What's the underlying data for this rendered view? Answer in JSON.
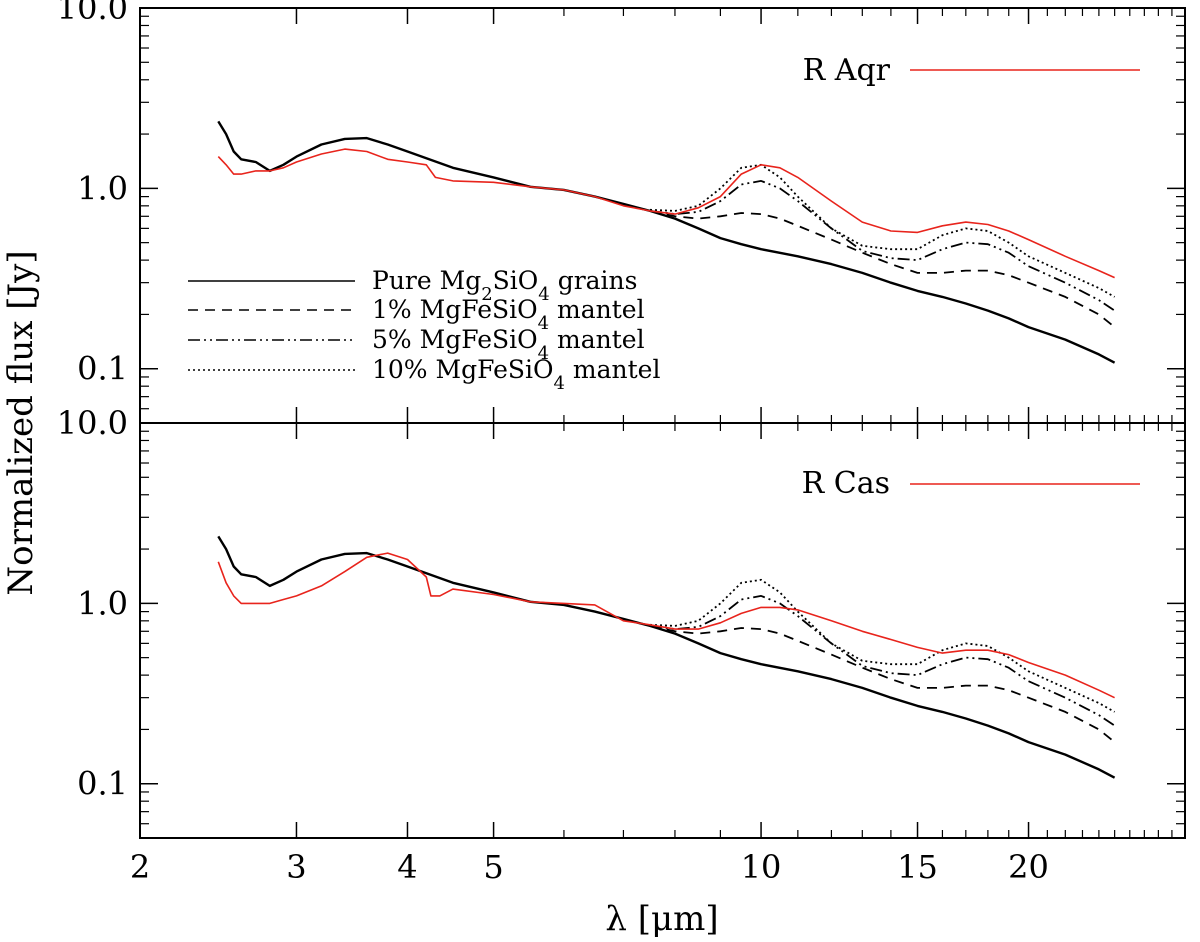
{
  "chart_data": {
    "type": "line",
    "scale": {
      "x": "log",
      "y": "log"
    },
    "xlabel": "λ [μm]",
    "ylabel": "Normalized flux [Jy]",
    "xlim": [
      2,
      30
    ],
    "ylim": [
      0.05,
      10
    ],
    "x_ticks": [
      2,
      3,
      4,
      5,
      10,
      15,
      20
    ],
    "x_tick_labels": [
      "2",
      "3",
      "4",
      "5",
      "10",
      "15",
      "20"
    ],
    "y_ticks": [
      0.1,
      1,
      10
    ],
    "y_tick_labels": [
      "0.1",
      "1.0",
      "10.0"
    ],
    "legend": {
      "placement": "lower-left of top panel",
      "entries": [
        {
          "style": "solid",
          "prefix": "Pure Mg",
          "sub1": "2",
          "mid": "SiO",
          "sub2": "4",
          "suffix": " grains"
        },
        {
          "style": "dashed",
          "prefix": "1% MgFeSiO",
          "sub1": "",
          "mid": "",
          "sub2": "4",
          "suffix": " mantel"
        },
        {
          "style": "dashdotdot",
          "prefix": "5% MgFeSiO",
          "sub1": "",
          "mid": "",
          "sub2": "4",
          "suffix": " mantel"
        },
        {
          "style": "dotted",
          "prefix": "10% MgFeSiO",
          "sub1": "",
          "mid": "",
          "sub2": "4",
          "suffix": " mantel"
        }
      ]
    },
    "model_series": [
      {
        "name": "Pure Mg2SiO4 grains",
        "style": "solid",
        "x": [
          2.45,
          2.5,
          2.55,
          2.6,
          2.7,
          2.8,
          2.9,
          3.0,
          3.2,
          3.4,
          3.6,
          3.8,
          4.0,
          4.5,
          5.0,
          5.5,
          6.0,
          6.5,
          7.0,
          7.5,
          8.0,
          8.5,
          9.0,
          9.5,
          10.0,
          11.0,
          12.0,
          13.0,
          14.0,
          15.0,
          16.0,
          17.0,
          18.0,
          19.0,
          20.0,
          22.0,
          24.0,
          25.0
        ],
        "y": [
          2.35,
          2.0,
          1.6,
          1.45,
          1.4,
          1.25,
          1.35,
          1.5,
          1.75,
          1.88,
          1.9,
          1.75,
          1.6,
          1.3,
          1.15,
          1.02,
          0.98,
          0.9,
          0.82,
          0.75,
          0.68,
          0.6,
          0.53,
          0.49,
          0.46,
          0.42,
          0.38,
          0.34,
          0.3,
          0.27,
          0.25,
          0.23,
          0.21,
          0.19,
          0.17,
          0.145,
          0.12,
          0.108
        ]
      },
      {
        "name": "1% MgFeSiO4 mantel",
        "style": "dashed",
        "x": [
          7.5,
          8.0,
          8.5,
          9.0,
          9.5,
          10.0,
          10.5,
          11.0,
          12.0,
          13.0,
          14.0,
          15.0,
          16.0,
          17.0,
          18.0,
          19.0,
          20.0,
          22.0,
          24.0,
          25.0
        ],
        "y": [
          0.75,
          0.7,
          0.68,
          0.7,
          0.73,
          0.72,
          0.68,
          0.62,
          0.52,
          0.44,
          0.38,
          0.34,
          0.34,
          0.35,
          0.35,
          0.33,
          0.3,
          0.25,
          0.2,
          0.17
        ]
      },
      {
        "name": "5% MgFeSiO4 mantel",
        "style": "dashdotdot",
        "x": [
          7.5,
          8.0,
          8.5,
          9.0,
          9.5,
          10.0,
          10.5,
          11.0,
          12.0,
          13.0,
          14.0,
          15.0,
          16.0,
          17.0,
          18.0,
          19.0,
          20.0,
          22.0,
          24.0,
          25.0
        ],
        "y": [
          0.75,
          0.72,
          0.74,
          0.85,
          1.05,
          1.1,
          1.0,
          0.85,
          0.6,
          0.45,
          0.41,
          0.4,
          0.46,
          0.5,
          0.49,
          0.44,
          0.37,
          0.3,
          0.24,
          0.21
        ]
      },
      {
        "name": "10% MgFeSiO4 mantel",
        "style": "dotted",
        "x": [
          7.5,
          8.0,
          8.5,
          9.0,
          9.5,
          10.0,
          10.5,
          11.0,
          12.0,
          13.0,
          14.0,
          15.0,
          16.0,
          17.0,
          18.0,
          19.0,
          20.0,
          22.0,
          24.0,
          25.0
        ],
        "y": [
          0.76,
          0.75,
          0.8,
          1.0,
          1.3,
          1.35,
          1.15,
          0.9,
          0.6,
          0.48,
          0.46,
          0.46,
          0.55,
          0.6,
          0.58,
          0.5,
          0.42,
          0.34,
          0.28,
          0.25
        ]
      }
    ],
    "panels": [
      {
        "star": "R Aqr",
        "color": "#e8241c",
        "observed": {
          "x": [
            2.45,
            2.5,
            2.55,
            2.6,
            2.7,
            2.8,
            2.9,
            3.0,
            3.2,
            3.4,
            3.6,
            3.8,
            4.0,
            4.2,
            4.3,
            4.5,
            5.0,
            5.5,
            6.0,
            6.5,
            7.0,
            7.5,
            8.0,
            8.5,
            9.0,
            9.5,
            10.0,
            10.5,
            11.0,
            12.0,
            13.0,
            14.0,
            15.0,
            16.0,
            17.0,
            18.0,
            19.0,
            20.0,
            22.0,
            24.0,
            25.0
          ],
          "y": [
            1.5,
            1.35,
            1.2,
            1.2,
            1.25,
            1.25,
            1.3,
            1.4,
            1.55,
            1.65,
            1.6,
            1.45,
            1.4,
            1.35,
            1.15,
            1.1,
            1.08,
            1.02,
            0.98,
            0.9,
            0.8,
            0.75,
            0.72,
            0.78,
            0.9,
            1.2,
            1.35,
            1.3,
            1.15,
            0.85,
            0.65,
            0.58,
            0.57,
            0.62,
            0.65,
            0.63,
            0.58,
            0.52,
            0.42,
            0.35,
            0.32
          ]
        }
      },
      {
        "star": "R Cas",
        "color": "#e8241c",
        "observed": {
          "x": [
            2.45,
            2.5,
            2.55,
            2.6,
            2.7,
            2.8,
            2.9,
            3.0,
            3.2,
            3.4,
            3.6,
            3.8,
            4.0,
            4.2,
            4.25,
            4.35,
            4.5,
            5.0,
            5.5,
            6.0,
            6.5,
            7.0,
            7.5,
            8.0,
            8.5,
            9.0,
            9.5,
            10.0,
            10.5,
            11.0,
            12.0,
            13.0,
            14.0,
            15.0,
            16.0,
            17.0,
            18.0,
            19.0,
            20.0,
            22.0,
            24.0,
            25.0
          ],
          "y": [
            1.7,
            1.3,
            1.1,
            1.0,
            1.0,
            1.0,
            1.05,
            1.1,
            1.25,
            1.5,
            1.8,
            1.9,
            1.75,
            1.4,
            1.1,
            1.1,
            1.2,
            1.12,
            1.02,
            1.0,
            0.98,
            0.8,
            0.76,
            0.72,
            0.72,
            0.78,
            0.88,
            0.95,
            0.95,
            0.92,
            0.8,
            0.7,
            0.63,
            0.57,
            0.53,
            0.55,
            0.55,
            0.52,
            0.47,
            0.4,
            0.33,
            0.3
          ]
        }
      }
    ]
  }
}
